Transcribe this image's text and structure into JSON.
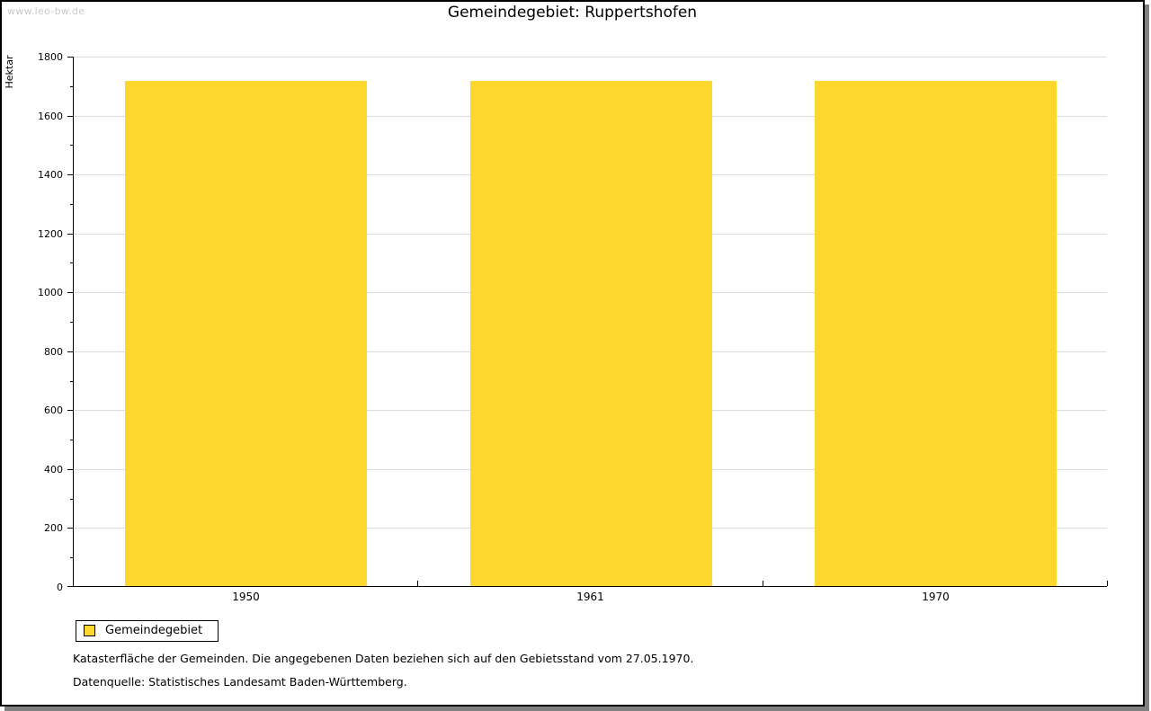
{
  "watermark": "www.leo-bw.de",
  "title": "Gemeindegebiet: Ruppertshofen",
  "chart_data": {
    "type": "bar",
    "title": "Gemeindegebiet: Ruppertshofen",
    "categories": [
      "1950",
      "1961",
      "1970"
    ],
    "series": [
      {
        "name": "Gemeindegebiet",
        "values": [
          1716,
          1716,
          1716
        ]
      }
    ],
    "xlabel": "",
    "ylabel": "Hektar",
    "ylim": [
      0,
      1800
    ],
    "yticks": [
      0,
      200,
      400,
      600,
      800,
      1000,
      1200,
      1400,
      1600,
      1800
    ],
    "ytick_step": 200,
    "yminor_step": 100,
    "grid": true,
    "legend_position": "bottom-left",
    "bar_color": "#FDD62E"
  },
  "legend": {
    "items": [
      {
        "label": "Gemeindegebiet",
        "color": "#FDD62E"
      }
    ]
  },
  "footer": {
    "line1": "Katasterfläche der Gemeinden. Die angegebenen Daten beziehen sich auf den Gebietsstand vom 27.05.1970.",
    "line2": "Datenquelle: Statistisches Landesamt Baden-Württemberg."
  },
  "colors": {
    "bar": "#FDD62E",
    "grid": "#DCDCDC",
    "axis": "#000000",
    "watermark": "#C9C9C9",
    "shadow": "#808080"
  }
}
